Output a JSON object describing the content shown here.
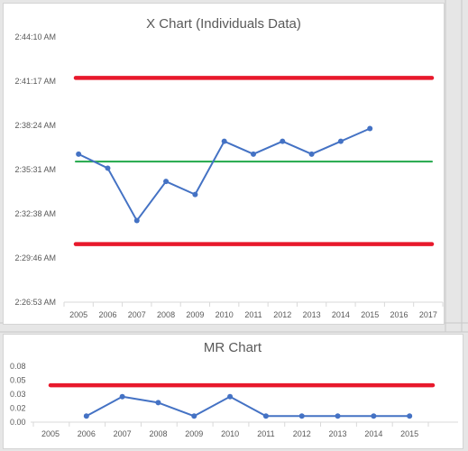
{
  "chart_data": [
    {
      "type": "line",
      "title": "X Chart (Individuals Data)",
      "categories": [
        "2005",
        "2006",
        "2007",
        "2008",
        "2009",
        "2010",
        "2011",
        "2012",
        "2013",
        "2014",
        "2015",
        "2016",
        "2017"
      ],
      "ytick_labels": [
        "2:26:53 AM",
        "2:29:46 AM",
        "2:32:38 AM",
        "2:35:31 AM",
        "2:38:24 AM",
        "2:41:17 AM",
        "2:44:10 AM"
      ],
      "ylim_seconds": [
        8813,
        9850
      ],
      "grid": false,
      "series": [
        {
          "role": "data",
          "color": "#4472c4",
          "values_seconds": [
            9392,
            9337,
            9132,
            9285,
            9234,
            9442,
            9392,
            9442,
            9392,
            9442,
            9492,
            null,
            null
          ]
        },
        {
          "role": "upper-limit",
          "color": "#e8192c",
          "level_seconds": 9690
        },
        {
          "role": "center-line",
          "color": "#21a84a",
          "level_seconds": 9363
        },
        {
          "role": "lower-limit",
          "color": "#e8192c",
          "level_seconds": 9040
        }
      ]
    },
    {
      "type": "line",
      "title": "MR Chart",
      "categories": [
        "2005",
        "2006",
        "2007",
        "2008",
        "2009",
        "2010",
        "2011",
        "2012",
        "2013",
        "2014",
        "2015"
      ],
      "ytick_labels": [
        "0.00",
        "0.02",
        "0.03",
        "0.05",
        "0.08"
      ],
      "ylim": [
        0,
        0.0833
      ],
      "grid": false,
      "series": [
        {
          "role": "data",
          "color": "#4472c4",
          "values": [
            null,
            0.009,
            0.038,
            0.029,
            0.009,
            0.038,
            0.009,
            0.009,
            0.009,
            0.009,
            0.009
          ]
        },
        {
          "role": "upper-limit",
          "color": "#e8192c",
          "level": 0.055
        }
      ]
    }
  ]
}
